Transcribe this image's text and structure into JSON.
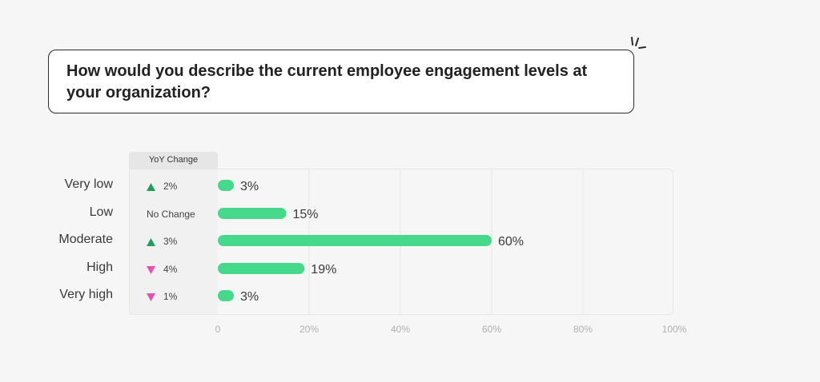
{
  "question": "How would you describe the current employee engagement levels at your organization?",
  "yoy_header": "YoY Change",
  "colors": {
    "bar": "#47d98b",
    "up": "#1e9e56",
    "down": "#ec4fb4",
    "grid": "#e6e6e6"
  },
  "yoy": [
    {
      "direction": "up",
      "text": "2%"
    },
    {
      "direction": "none",
      "text": "No Change"
    },
    {
      "direction": "up",
      "text": "3%"
    },
    {
      "direction": "down",
      "text": "4%"
    },
    {
      "direction": "down",
      "text": "1%"
    }
  ],
  "chart_data": {
    "type": "bar",
    "orientation": "horizontal",
    "title": "How would you describe the current employee engagement levels at your organization?",
    "categories": [
      "Very low",
      "Low",
      "Moderate",
      "High",
      "Very high"
    ],
    "values": [
      3,
      15,
      60,
      19,
      3
    ],
    "value_labels": [
      "3%",
      "15%",
      "60%",
      "19%",
      "3%"
    ],
    "xlim": [
      0,
      100
    ],
    "ticks": [
      0,
      20,
      40,
      60,
      80,
      100
    ],
    "tick_labels": [
      "0",
      "20%",
      "40%",
      "60%",
      "80%",
      "100%"
    ],
    "grid": true
  }
}
